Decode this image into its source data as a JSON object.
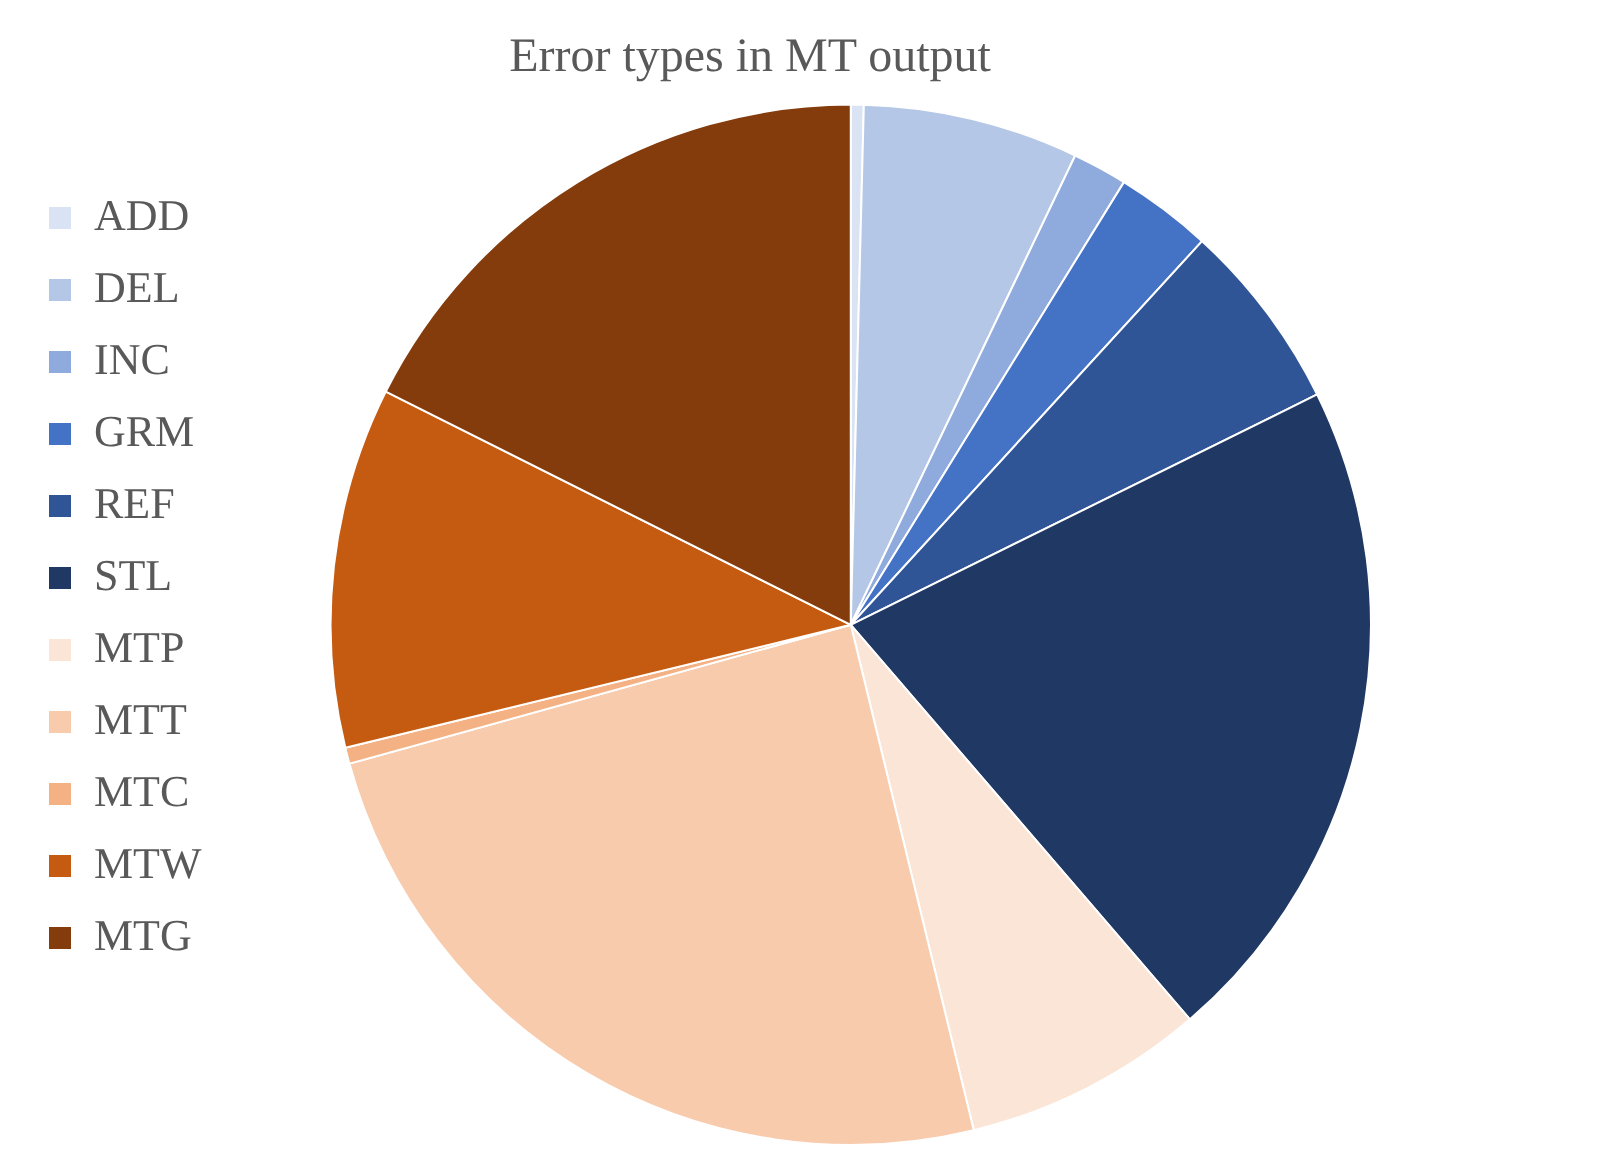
{
  "chart_data": {
    "type": "pie",
    "title": "Error types in MT output",
    "categories": [
      "ADD",
      "DEL",
      "INC",
      "GRM",
      "REF",
      "STL",
      "MTP",
      "MTT",
      "MTC",
      "MTW",
      "MTG"
    ],
    "values": [
      0.4,
      6.7,
      1.7,
      3.0,
      5.9,
      21.0,
      7.5,
      24.5,
      0.5,
      11.2,
      17.6
    ],
    "colors": [
      "#dae3f3",
      "#b4c7e7",
      "#8faadc",
      "#4472c4",
      "#2f5597",
      "#203864",
      "#fbe5d6",
      "#f8cbad",
      "#f4b183",
      "#c55a11",
      "#843c0c"
    ],
    "legend": "left"
  }
}
